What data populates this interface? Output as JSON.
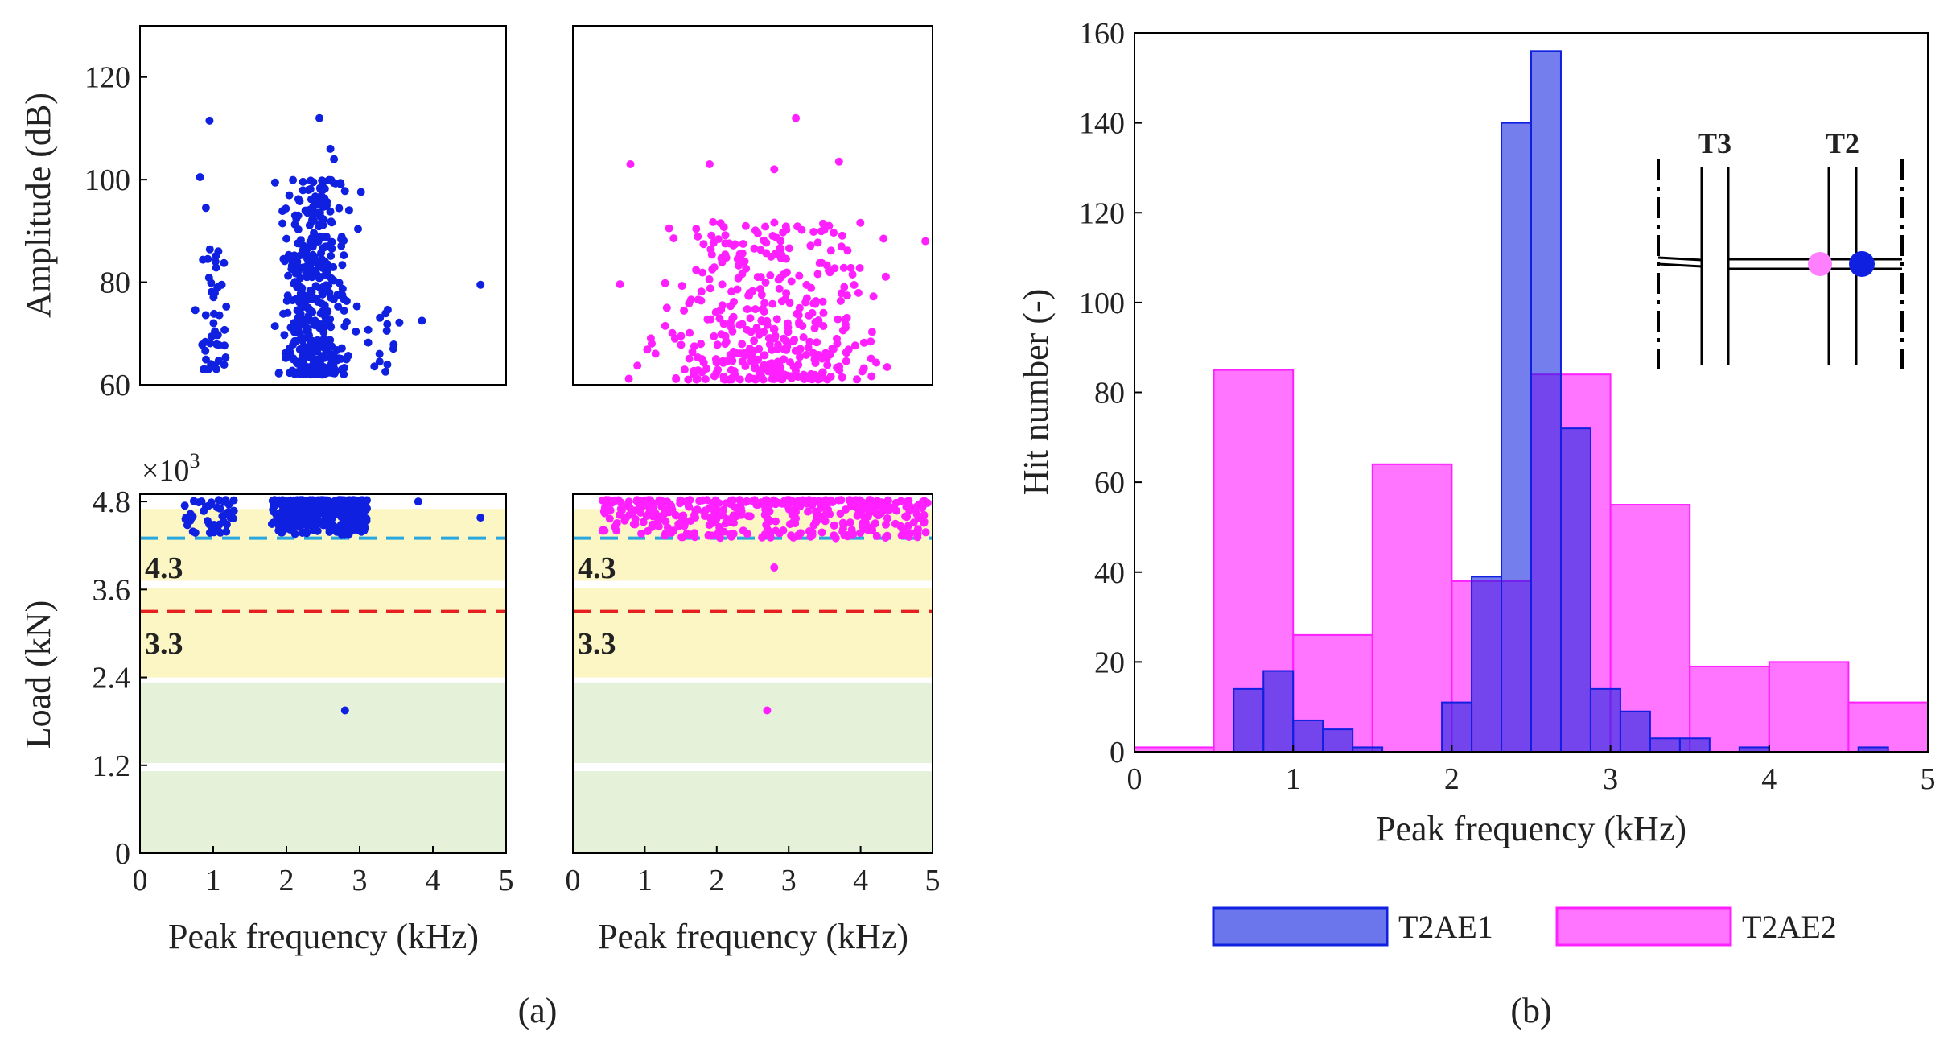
{
  "captions": {
    "left": "(a)",
    "right": "(b)"
  },
  "colors": {
    "blue": "#1020e0",
    "magenta": "#ff20ff",
    "cyan_dash": "#2aa7df",
    "red_dash": "#e62020",
    "yellow_band": "#fbf6c4",
    "green_band": "#e6f1da"
  },
  "panel_a": {
    "amp_ylabel": "Amplitude (dB)",
    "load_ylabel": "Load (kN)",
    "xlabel": "Peak frequency (kHz)",
    "amp_yticks": [
      "60",
      "80",
      "100",
      "120"
    ],
    "load_yticks": [
      "0",
      "1.2",
      "2.4",
      "3.6",
      "4.8"
    ],
    "xticks": [
      "0",
      "1",
      "2",
      "3",
      "4",
      "5"
    ],
    "load_multiplier": "×10",
    "load_multiplier_exp": "3",
    "threshold_high": "4.3",
    "threshold_low": "3.3"
  },
  "panel_b": {
    "ylabel": "Hit number (-)",
    "xlabel": "Peak frequency (kHz)",
    "yticks": [
      "0",
      "20",
      "40",
      "60",
      "80",
      "100",
      "120",
      "140",
      "160"
    ],
    "xticks": [
      "0",
      "1",
      "2",
      "3",
      "4",
      "5"
    ],
    "legend": [
      "T2AE1",
      "T2AE2"
    ],
    "inset_labels": {
      "left": "T3",
      "right": "T2"
    }
  },
  "chart_data": [
    {
      "type": "scatter",
      "series_note": "T2AE1 amplitude",
      "xlabel": "Peak frequency (kHz)",
      "ylabel": "Amplitude (dB)",
      "xlim": [
        0,
        5
      ],
      "ylim": [
        60,
        130
      ],
      "clusters": [
        {
          "x_range": [
            0.6,
            1.4
          ],
          "y_range": [
            63,
            88
          ],
          "count": 45
        },
        {
          "x_range": [
            1.7,
            3.1
          ],
          "y_range": [
            62,
            100
          ],
          "count": 420
        },
        {
          "x_range": [
            3.0,
            3.6
          ],
          "y_range": [
            62,
            75
          ],
          "count": 15
        }
      ],
      "points": [
        [
          0.95,
          111.5
        ],
        [
          0.82,
          100.5
        ],
        [
          0.9,
          94.5
        ],
        [
          2.45,
          112
        ],
        [
          2.6,
          106
        ],
        [
          2.65,
          104
        ],
        [
          3.85,
          72.5
        ],
        [
          4.65,
          79.5
        ]
      ]
    },
    {
      "type": "scatter",
      "series_note": "T2AE2 amplitude",
      "xlabel": "Peak frequency (kHz)",
      "ylabel": "Amplitude (dB)",
      "xlim": [
        0,
        5
      ],
      "ylim": [
        60,
        130
      ],
      "clusters": [
        {
          "x_range": [
            0.4,
            5.0
          ],
          "y_range": [
            61,
            92
          ],
          "count": 400
        }
      ],
      "points": [
        [
          3.1,
          112
        ],
        [
          0.8,
          103
        ],
        [
          1.9,
          103
        ],
        [
          2.8,
          102
        ],
        [
          3.7,
          103.5
        ],
        [
          4.9,
          88
        ]
      ]
    },
    {
      "type": "scatter",
      "series_note": "T2AE1 load",
      "xlabel": "Peak frequency (kHz)",
      "ylabel": "Load (kN)",
      "xlim": [
        0,
        5
      ],
      "ylim": [
        0,
        4.9
      ],
      "y_multiplier": "×10^3",
      "thresholds": [
        4.3,
        3.3
      ],
      "bands": [
        {
          "from": 2.4,
          "to": 4.7,
          "color": "yellow"
        },
        {
          "from": 0,
          "to": 2.35,
          "color": "green"
        }
      ],
      "clusters": [
        {
          "x_range": [
            0.6,
            1.3
          ],
          "y_range": [
            4.35,
            4.82
          ],
          "count": 50
        },
        {
          "x_range": [
            1.8,
            3.1
          ],
          "y_range": [
            4.35,
            4.82
          ],
          "count": 380
        }
      ],
      "points": [
        [
          2.8,
          1.95
        ],
        [
          3.8,
          4.8
        ],
        [
          4.65,
          4.58
        ]
      ]
    },
    {
      "type": "scatter",
      "series_note": "T2AE2 load",
      "xlabel": "Peak frequency (kHz)",
      "ylabel": "Load (kN)",
      "xlim": [
        0,
        5
      ],
      "ylim": [
        0,
        4.9
      ],
      "y_multiplier": "×10^3",
      "thresholds": [
        4.3,
        3.3
      ],
      "bands": [
        {
          "from": 2.4,
          "to": 4.7,
          "color": "yellow"
        },
        {
          "from": 0,
          "to": 2.35,
          "color": "green"
        }
      ],
      "clusters": [
        {
          "x_range": [
            0.4,
            4.95
          ],
          "y_range": [
            4.3,
            4.82
          ],
          "count": 420
        }
      ],
      "points": [
        [
          2.8,
          3.9
        ],
        [
          2.7,
          1.95
        ]
      ]
    },
    {
      "type": "bar",
      "series_note": "histogram of hit number",
      "xlabel": "Peak frequency (kHz)",
      "ylabel": "Hit number (-)",
      "xlim": [
        0,
        5
      ],
      "ylim": [
        0,
        160
      ],
      "legend_position": "bottom",
      "series": [
        {
          "name": "T2AE1",
          "bin_width": 0.1875,
          "bins": [
            [
              0.4375,
              0.625,
              0
            ],
            [
              0.625,
              0.8125,
              14
            ],
            [
              0.8125,
              1.0,
              18
            ],
            [
              1.0,
              1.1875,
              7
            ],
            [
              1.1875,
              1.375,
              5
            ],
            [
              1.375,
              1.5625,
              1
            ],
            [
              1.5625,
              1.75,
              0
            ],
            [
              1.75,
              1.9375,
              0
            ],
            [
              1.9375,
              2.125,
              11
            ],
            [
              2.125,
              2.3125,
              39
            ],
            [
              2.3125,
              2.5,
              140
            ],
            [
              2.5,
              2.6875,
              156
            ],
            [
              2.6875,
              2.875,
              72
            ],
            [
              2.875,
              3.0625,
              14
            ],
            [
              3.0625,
              3.25,
              9
            ],
            [
              3.25,
              3.4375,
              3
            ],
            [
              3.4375,
              3.625,
              3
            ],
            [
              3.625,
              3.8125,
              0
            ],
            [
              3.8125,
              4.0,
              1
            ],
            [
              4.0,
              4.1875,
              0
            ],
            [
              4.1875,
              4.375,
              0
            ],
            [
              4.375,
              4.5625,
              0
            ],
            [
              4.5625,
              4.75,
              1
            ]
          ]
        },
        {
          "name": "T2AE2",
          "bin_width": 0.5,
          "bins": [
            [
              0,
              0.5,
              1
            ],
            [
              0.5,
              1.0,
              85
            ],
            [
              1.0,
              1.5,
              26
            ],
            [
              1.5,
              2.0,
              64
            ],
            [
              2.0,
              2.5,
              38
            ],
            [
              2.5,
              3.0,
              84
            ],
            [
              3.0,
              3.5,
              55
            ],
            [
              3.5,
              4.0,
              19
            ],
            [
              4.0,
              4.5,
              20
            ],
            [
              4.5,
              5.0,
              11
            ]
          ]
        }
      ]
    }
  ]
}
